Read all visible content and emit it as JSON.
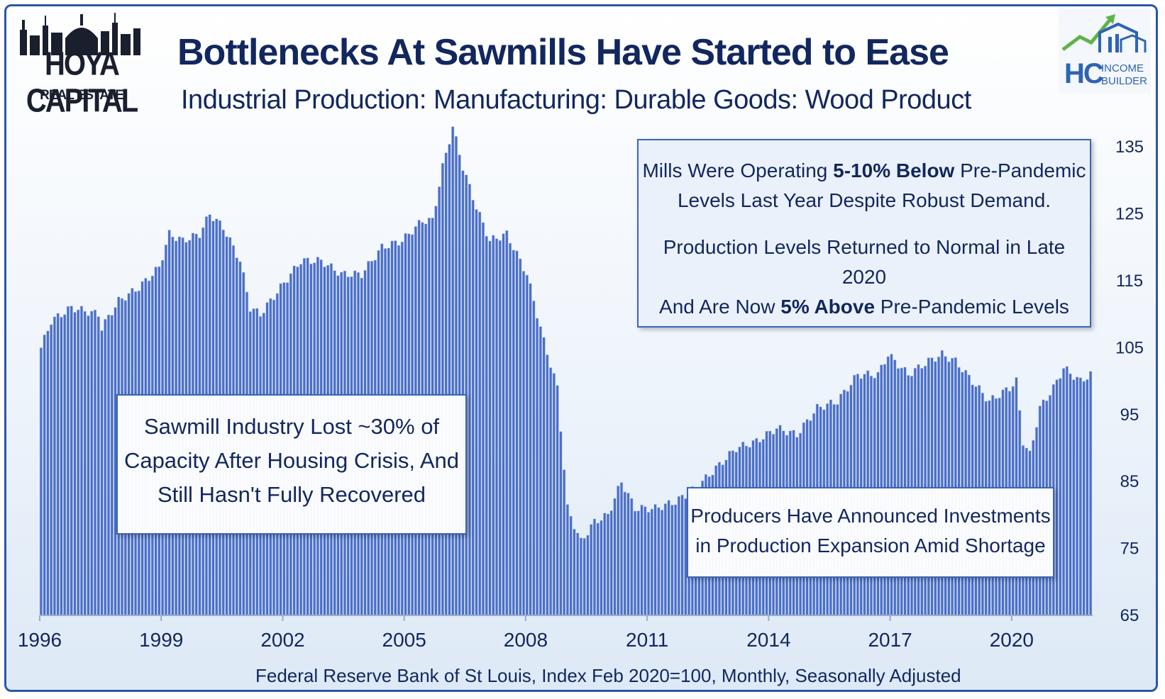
{
  "header": {
    "title": "Bottlenecks At Sawmills Have Started to Ease",
    "subtitle": "Industrial Production: Manufacturing: Durable Goods: Wood Product"
  },
  "logos": {
    "left_name": "HOYA CAPITAL",
    "left_sub": "REAL ESTATE",
    "right_mark": "HC",
    "right_line1": "INCOME",
    "right_line2": "BUILDER"
  },
  "callouts": {
    "top_right_1a": "Mills Were Operating ",
    "top_right_1b": "5-10% Below",
    "top_right_1c": " Pre-Pandemic",
    "top_right_1d": "Levels Last Year Despite Robust Demand.",
    "top_right_2a": "Production Levels Returned to Normal in Late 2020",
    "top_right_2b": "And Are Now ",
    "top_right_2c": "5% Above",
    "top_right_2d": " Pre-Pandemic Levels",
    "middle_left_1": "Sawmill Industry Lost ~30% of",
    "middle_left_2": "Capacity After Housing Crisis, And",
    "middle_left_3": "Still Hasn't Fully Recovered",
    "bottom_right_1": "Producers Have Announced Investments",
    "bottom_right_2": "in Production Expansion Amid Shortage"
  },
  "footnote": "Federal Reserve Bank of St Louis, Index Feb 2020=100, Monthly, Seasonally Adjusted",
  "colors": {
    "bar": "#4a6ec8",
    "bar_edge": "#c8d6ee",
    "text": "#12275e",
    "frame": "#2d55a8"
  },
  "chart_data": {
    "type": "bar",
    "start": "1996-01",
    "frequency": "monthly",
    "x_tick_labels": [
      "1996",
      "1999",
      "2002",
      "2005",
      "2008",
      "2011",
      "2014",
      "2017",
      "2020"
    ],
    "y_tick_labels": [
      "65",
      "75",
      "85",
      "95",
      "105",
      "115",
      "125",
      "135"
    ],
    "ylim": [
      65,
      140
    ],
    "y_axis_side": "right",
    "grid": false,
    "anchors": [
      [
        "1996-01",
        105
      ],
      [
        "1996-04",
        109
      ],
      [
        "1996-10",
        111
      ],
      [
        "1997-06",
        110
      ],
      [
        "1997-07",
        108
      ],
      [
        "1997-12",
        112
      ],
      [
        "1998-06",
        114
      ],
      [
        "1998-12",
        117
      ],
      [
        "1999-03",
        122
      ],
      [
        "1999-07",
        121
      ],
      [
        "1999-12",
        122
      ],
      [
        "2000-03",
        125
      ],
      [
        "2000-07",
        123
      ],
      [
        "2000-12",
        118
      ],
      [
        "2001-03",
        111
      ],
      [
        "2001-06",
        110
      ],
      [
        "2001-12",
        114
      ],
      [
        "2002-06",
        118
      ],
      [
        "2002-12",
        118
      ],
      [
        "2003-06",
        116
      ],
      [
        "2003-12",
        116
      ],
      [
        "2004-06",
        120
      ],
      [
        "2004-12",
        121
      ],
      [
        "2005-06",
        124
      ],
      [
        "2005-09",
        124
      ],
      [
        "2005-12",
        132
      ],
      [
        "2006-03",
        138
      ],
      [
        "2006-06",
        132
      ],
      [
        "2006-10",
        126
      ],
      [
        "2007-02",
        121
      ],
      [
        "2007-07",
        122
      ],
      [
        "2007-10",
        119
      ],
      [
        "2008-01",
        116
      ],
      [
        "2008-06",
        106
      ],
      [
        "2008-10",
        99
      ],
      [
        "2009-01",
        81
      ],
      [
        "2009-05",
        76
      ],
      [
        "2009-09",
        79
      ],
      [
        "2010-01",
        80
      ],
      [
        "2010-05",
        85
      ],
      [
        "2010-09",
        81
      ],
      [
        "2011-03",
        81
      ],
      [
        "2011-09",
        82
      ],
      [
        "2012-03",
        84
      ],
      [
        "2012-09",
        87
      ],
      [
        "2013-03",
        90
      ],
      [
        "2013-09",
        91
      ],
      [
        "2014-03",
        93
      ],
      [
        "2014-09",
        92
      ],
      [
        "2015-03",
        96
      ],
      [
        "2015-09",
        97
      ],
      [
        "2016-03",
        101
      ],
      [
        "2016-09",
        101
      ],
      [
        "2016-12",
        104
      ],
      [
        "2017-06",
        101
      ],
      [
        "2017-12",
        103
      ],
      [
        "2018-04",
        104
      ],
      [
        "2018-08",
        103
      ],
      [
        "2019-01",
        100
      ],
      [
        "2019-06",
        97
      ],
      [
        "2019-12",
        99
      ],
      [
        "2020-02",
        100
      ],
      [
        "2020-04",
        91
      ],
      [
        "2020-06",
        89
      ],
      [
        "2020-09",
        96
      ],
      [
        "2021-01",
        99
      ],
      [
        "2021-04",
        102
      ],
      [
        "2021-09",
        100
      ],
      [
        "2021-12",
        101
      ]
    ]
  }
}
